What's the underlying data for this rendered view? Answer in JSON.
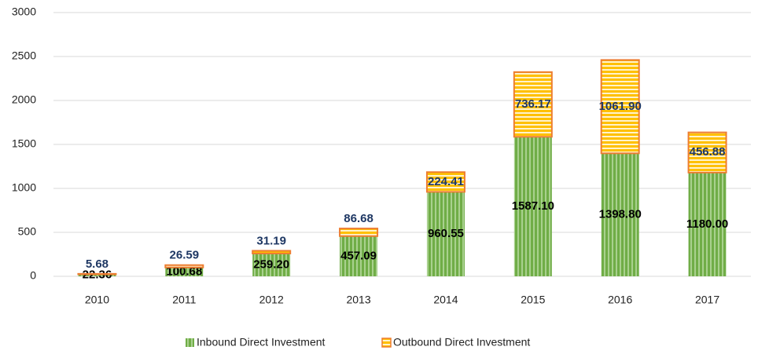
{
  "chart_data": {
    "type": "stacked_bar",
    "categories": [
      "2010",
      "2011",
      "2012",
      "2013",
      "2014",
      "2015",
      "2016",
      "2017"
    ],
    "series": [
      {
        "name": "Inbound Direct Investment",
        "color": "#70ad47",
        "values": [
          22.36,
          100.68,
          259.2,
          457.09,
          960.55,
          1587.1,
          1398.8,
          1180
        ],
        "value_labels": [
          "22.36",
          "100.68",
          "259.20",
          "457.09",
          "960.55",
          "1587.10",
          "1398.80",
          "1180.00"
        ]
      },
      {
        "name": "Outbound Direct Investment",
        "color": "#ed7d31",
        "values": [
          5.68,
          26.59,
          31.19,
          86.68,
          224.41,
          736.17,
          1061.9,
          456.88
        ],
        "value_labels": [
          "5.68",
          "26.59",
          "31.19",
          "86.68",
          "224.41",
          "736.17",
          "1061.90",
          "456.88"
        ]
      }
    ],
    "ylim": [
      0,
      3000
    ],
    "yticks": [
      0,
      500,
      1000,
      1500,
      2000,
      2500,
      3000
    ],
    "grid": true,
    "legend": "bottom"
  }
}
